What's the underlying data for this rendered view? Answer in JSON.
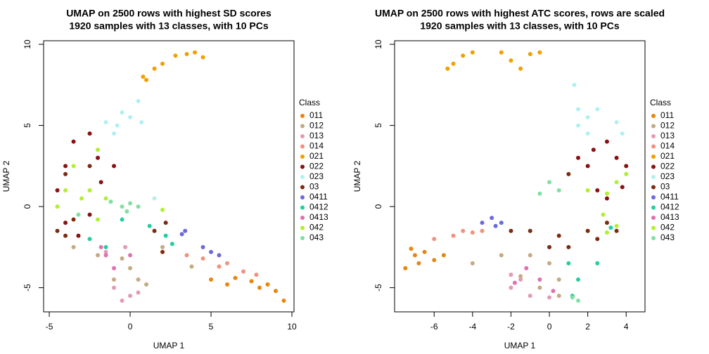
{
  "chart_data": [
    {
      "type": "scatter",
      "title": "UMAP on 2500 rows with highest SD scores",
      "subtitle": "1920 samples with 13 classes, with 10 PCs",
      "x_label": "UMAP 1",
      "y_label": "UMAP 2",
      "legend_title": "Class",
      "xlim": [
        -5.35,
        10.13
      ],
      "ylim": [
        -6.49,
        10.22
      ],
      "xticks": [
        -5,
        0,
        5,
        10
      ],
      "yticks": [
        -5,
        0,
        5,
        10
      ],
      "series": [
        {
          "name": "011",
          "color": "#e8850f",
          "x": [
            5,
            6,
            7.5,
            8.5,
            9,
            9.5,
            6.5,
            8
          ],
          "y": [
            -4.5,
            -4.8,
            -4.6,
            -4.8,
            -5.2,
            -5.8,
            -4.4,
            -5
          ]
        },
        {
          "name": "012",
          "color": "#c4a981",
          "x": [
            -3.5,
            -2,
            0,
            0.5,
            -1,
            1,
            2,
            3.8,
            -0.5
          ],
          "y": [
            -2.5,
            -3,
            -3.8,
            -4.5,
            -4.5,
            -4.8,
            -2.5,
            -3.7,
            -3.2
          ]
        },
        {
          "name": "013",
          "color": "#e49ab6",
          "x": [
            -1,
            0,
            -0.5,
            0.5,
            -1.5,
            -0.3
          ],
          "y": [
            -5,
            -5.5,
            -5.8,
            -5.3,
            -2.8,
            -2.5
          ]
        },
        {
          "name": "014",
          "color": "#f2907e",
          "x": [
            3.5,
            4.5,
            6,
            7,
            7.8,
            5.5
          ],
          "y": [
            -3,
            -3.2,
            -3.5,
            -4,
            -4.2,
            -3.7
          ]
        },
        {
          "name": "021",
          "color": "#f0a000",
          "x": [
            0.8,
            1.5,
            2,
            2.8,
            3.5,
            4.5,
            1,
            4
          ],
          "y": [
            8,
            8.5,
            8.8,
            9.3,
            9.4,
            9.2,
            7.8,
            9.5
          ]
        },
        {
          "name": "022",
          "color": "#8b1010",
          "x": [
            -4,
            -4.5,
            -3.5,
            -2.5,
            -2,
            -1,
            -4,
            -3.2,
            -2.5,
            -1.8
          ],
          "y": [
            2.5,
            1,
            4,
            4.5,
            3,
            2.5,
            -1,
            -1.8,
            -0.5,
            1.5
          ]
        },
        {
          "name": "023",
          "color": "#b2f0f0",
          "x": [
            -1.5,
            -0.8,
            -0.5,
            0,
            -1,
            0.5,
            1.5,
            0.7
          ],
          "y": [
            5.2,
            5,
            5.8,
            5.5,
            4.5,
            6.5,
            0.5,
            5.2
          ]
        },
        {
          "name": "03",
          "color": "#7f2a10",
          "x": [
            -4.5,
            -4,
            -3.5,
            1.5,
            2,
            2.2,
            -4,
            -2.5
          ],
          "y": [
            -1.5,
            -1.8,
            -0.8,
            -1.5,
            -2.8,
            -1,
            2,
            2.5
          ]
        },
        {
          "name": "0411",
          "color": "#6a6adc",
          "x": [
            3.4,
            4.5,
            5,
            5.5,
            3.2
          ],
          "y": [
            -1.5,
            -2.5,
            -2.8,
            -3,
            -1.7
          ]
        },
        {
          "name": "0412",
          "color": "#20d0a0",
          "x": [
            -2.5,
            -1.5,
            -0.5,
            1.2,
            2.2,
            2.6
          ],
          "y": [
            -2,
            -2.5,
            -0.8,
            -1.2,
            -1.8,
            -2.3
          ]
        },
        {
          "name": "0413",
          "color": "#e070b0",
          "x": [
            -1.8,
            -1.5,
            -1,
            0
          ],
          "y": [
            -2.5,
            -3,
            -3.8,
            -3
          ]
        },
        {
          "name": "042",
          "color": "#b0f030",
          "x": [
            -4.5,
            -4,
            -3,
            -2.5,
            -2,
            -3.5,
            -2,
            2,
            -1.5
          ],
          "y": [
            0,
            1,
            0.5,
            1,
            -0.8,
            2.5,
            3.5,
            -0.2,
            0.5
          ]
        },
        {
          "name": "043",
          "color": "#80e0a0",
          "x": [
            -0.5,
            0,
            0.5,
            -0.2,
            -1.2,
            -3.2
          ],
          "y": [
            0,
            0.2,
            0,
            -0.3,
            0.3,
            -0.5
          ]
        }
      ]
    },
    {
      "type": "scatter",
      "title": "UMAP on 2500 rows with highest ATC scores, rows are scaled",
      "subtitle": "1920 samples with 13 classes, with 10 PCs",
      "x_label": "UMAP 1",
      "y_label": "UMAP 2",
      "legend_title": "Class",
      "xlim": [
        -8.06,
        4.98
      ],
      "ylim": [
        -6.49,
        10.22
      ],
      "xticks": [
        -6,
        -4,
        -2,
        0,
        2,
        4
      ],
      "yticks": [
        -5,
        0,
        5,
        10
      ],
      "series": [
        {
          "name": "011",
          "color": "#e8850f",
          "x": [
            -7.5,
            -7,
            -6.5,
            -6,
            -5.5,
            -6.8,
            -7.2
          ],
          "y": [
            -3.8,
            -3,
            -2.8,
            -3.3,
            -3,
            -3.5,
            -2.6
          ]
        },
        {
          "name": "012",
          "color": "#c4a981",
          "x": [
            -4,
            -2.5,
            -1.5,
            -0.5,
            0.5,
            0,
            -1,
            0.5
          ],
          "y": [
            -3.5,
            -3,
            -4.3,
            -5,
            -5.5,
            -3.5,
            -3,
            -4.5
          ]
        },
        {
          "name": "013",
          "color": "#e49ab6",
          "x": [
            -2,
            -1.5,
            -2,
            -1,
            0
          ],
          "y": [
            -5,
            -4.5,
            -4.2,
            -5.5,
            -5.6
          ]
        },
        {
          "name": "014",
          "color": "#f2907e",
          "x": [
            -6,
            -5,
            -4.5,
            -3.5,
            -4
          ],
          "y": [
            -2,
            -1.8,
            -1.5,
            -1.5,
            -1.6
          ]
        },
        {
          "name": "021",
          "color": "#f0a000",
          "x": [
            -5,
            -4.5,
            -4,
            -5.3,
            -2.5,
            -2,
            -1.5,
            -1,
            -0.5
          ],
          "y": [
            8.8,
            9.3,
            9.5,
            8.5,
            9.5,
            9,
            8.5,
            9.4,
            9.5
          ]
        },
        {
          "name": "022",
          "color": "#8b1010",
          "x": [
            2.3,
            3,
            3.5,
            4,
            2,
            2.5,
            1.5,
            3.8,
            3
          ],
          "y": [
            3.5,
            4,
            3,
            2.5,
            2.5,
            1,
            3,
            1.2,
            0.5
          ]
        },
        {
          "name": "023",
          "color": "#b2f0f0",
          "x": [
            1.5,
            2,
            2.5,
            3.5,
            3.8,
            1.3,
            2,
            1.5
          ],
          "y": [
            6,
            5.5,
            6,
            5.2,
            4.5,
            7.5,
            4.5,
            5
          ]
        },
        {
          "name": "03",
          "color": "#7f2a10",
          "x": [
            1,
            2,
            2.5,
            3,
            0,
            -1,
            -2,
            0.5,
            3.5,
            1
          ],
          "y": [
            -2.5,
            -1.5,
            -2,
            -1,
            -2.5,
            -1.5,
            -1.5,
            -1.8,
            -1.5,
            2
          ]
        },
        {
          "name": "0411",
          "color": "#6a6adc",
          "x": [
            -3.5,
            -3,
            -2.5,
            -2.8
          ],
          "y": [
            -1,
            -0.7,
            -1,
            -1.2
          ]
        },
        {
          "name": "0412",
          "color": "#20d0a0",
          "x": [
            1,
            1.5,
            2.5,
            1.2,
            3.2
          ],
          "y": [
            -3.5,
            -4.5,
            -3.5,
            -5.5,
            -1.3
          ]
        },
        {
          "name": "0413",
          "color": "#e070b0",
          "x": [
            -1.8,
            -1.2,
            -0.5,
            0.2
          ],
          "y": [
            -4.7,
            -3.8,
            -4.5,
            -5.2
          ]
        },
        {
          "name": "042",
          "color": "#b0f030",
          "x": [
            2,
            3,
            3.5,
            4,
            3.5,
            3,
            2.8
          ],
          "y": [
            1,
            0.8,
            1.5,
            2,
            -1.2,
            -1.6,
            -0.5
          ]
        },
        {
          "name": "043",
          "color": "#80e0a0",
          "x": [
            0,
            0.5,
            -0.5,
            1.5,
            1.2
          ],
          "y": [
            1.5,
            1,
            0.8,
            -5.8,
            -5.6
          ]
        }
      ]
    }
  ]
}
